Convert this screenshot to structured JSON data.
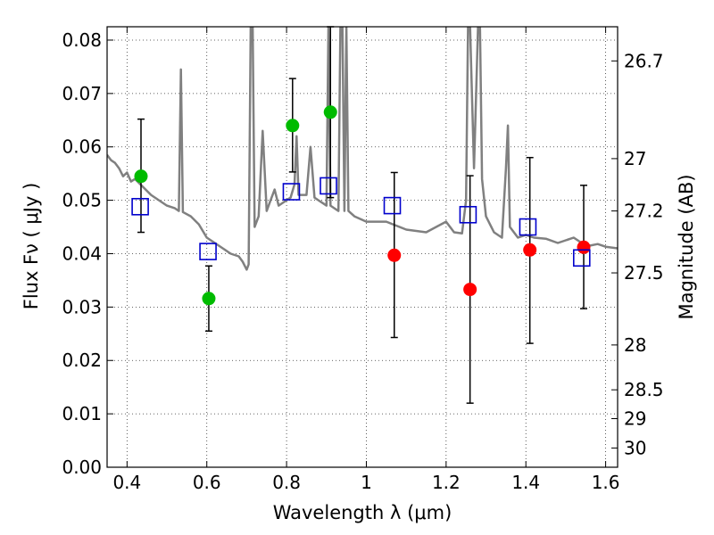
{
  "chart_data": {
    "type": "scatter",
    "xlabel": "Wavelength  λ (μm)",
    "ylabel": "Flux  Fν  ( μJy )",
    "y2label": "Magnitude (AB)",
    "xlim": [
      0.35,
      1.63
    ],
    "ylim": [
      0.0,
      0.0825
    ],
    "x_ticks": [
      0.4,
      0.6,
      0.8,
      1.0,
      1.2,
      1.4,
      1.6
    ],
    "x_tick_labels": [
      "0.4",
      "0.6",
      "0.8",
      "1",
      "1.2",
      "1.4",
      "1.6"
    ],
    "y_ticks": [
      0.0,
      0.01,
      0.02,
      0.03,
      0.04,
      0.05,
      0.06,
      0.07,
      0.08
    ],
    "y_tick_labels": [
      "0.00",
      "0.01",
      "0.02",
      "0.03",
      "0.04",
      "0.05",
      "0.06",
      "0.07",
      "0.08"
    ],
    "y2_ticks": [
      {
        "label": "26.7",
        "flux": 0.0761
      },
      {
        "label": "27",
        "flux": 0.0578
      },
      {
        "label": "27.2",
        "flux": 0.048
      },
      {
        "label": "27.5",
        "flux": 0.0364
      },
      {
        "label": "28",
        "flux": 0.0229
      },
      {
        "label": "28.5",
        "flux": 0.0145
      },
      {
        "label": "29",
        "flux": 0.0091
      },
      {
        "label": "30",
        "flux": 0.0036
      }
    ],
    "grid": true,
    "colors": {
      "green": "#00bb00",
      "red": "#ff0000",
      "square": "#0000cc",
      "spectrum": "#808080",
      "errorbar": "#000000"
    },
    "series": [
      {
        "marker": "circle-green",
        "points": [
          {
            "x": 0.435,
            "y": 0.0545,
            "yerr_low": 0.044,
            "yerr_high": 0.0652
          },
          {
            "x": 0.605,
            "y": 0.0316,
            "yerr_low": 0.0255,
            "yerr_high": 0.0377
          },
          {
            "x": 0.815,
            "y": 0.064,
            "yerr_low": 0.0553,
            "yerr_high": 0.0728
          },
          {
            "x": 0.91,
            "y": 0.0665,
            "yerr_low": 0.0505,
            "yerr_high": 0.0825
          }
        ]
      },
      {
        "marker": "circle-red",
        "points": [
          {
            "x": 1.07,
            "y": 0.0397,
            "yerr_low": 0.0243,
            "yerr_high": 0.0552
          },
          {
            "x": 1.26,
            "y": 0.0333,
            "yerr_low": 0.012,
            "yerr_high": 0.0546
          },
          {
            "x": 1.41,
            "y": 0.0407,
            "yerr_low": 0.0232,
            "yerr_high": 0.058
          },
          {
            "x": 1.545,
            "y": 0.0412,
            "yerr_low": 0.0297,
            "yerr_high": 0.0528
          }
        ]
      },
      {
        "marker": "square-blue",
        "points": [
          {
            "x": 0.433,
            "y": 0.0488
          },
          {
            "x": 0.603,
            "y": 0.0404
          },
          {
            "x": 0.812,
            "y": 0.0516
          },
          {
            "x": 0.905,
            "y": 0.0527
          },
          {
            "x": 1.065,
            "y": 0.049
          },
          {
            "x": 1.255,
            "y": 0.0473
          },
          {
            "x": 1.405,
            "y": 0.045
          },
          {
            "x": 1.54,
            "y": 0.0392
          }
        ]
      }
    ],
    "spectrum": [
      [
        0.35,
        0.0585
      ],
      [
        0.36,
        0.0575
      ],
      [
        0.37,
        0.057
      ],
      [
        0.38,
        0.056
      ],
      [
        0.39,
        0.0545
      ],
      [
        0.4,
        0.0552
      ],
      [
        0.41,
        0.0535
      ],
      [
        0.42,
        0.054
      ],
      [
        0.44,
        0.0525
      ],
      [
        0.46,
        0.051
      ],
      [
        0.48,
        0.05
      ],
      [
        0.5,
        0.049
      ],
      [
        0.52,
        0.0485
      ],
      [
        0.53,
        0.048
      ],
      [
        0.535,
        0.0745
      ],
      [
        0.54,
        0.0478
      ],
      [
        0.56,
        0.047
      ],
      [
        0.58,
        0.0455
      ],
      [
        0.6,
        0.043
      ],
      [
        0.62,
        0.042
      ],
      [
        0.64,
        0.041
      ],
      [
        0.66,
        0.04
      ],
      [
        0.68,
        0.0395
      ],
      [
        0.69,
        0.0385
      ],
      [
        0.7,
        0.037
      ],
      [
        0.705,
        0.038
      ],
      [
        0.71,
        0.0825
      ],
      [
        0.715,
        0.0825
      ],
      [
        0.72,
        0.045
      ],
      [
        0.73,
        0.047
      ],
      [
        0.74,
        0.063
      ],
      [
        0.75,
        0.048
      ],
      [
        0.76,
        0.05
      ],
      [
        0.77,
        0.052
      ],
      [
        0.78,
        0.049
      ],
      [
        0.79,
        0.0495
      ],
      [
        0.8,
        0.05
      ],
      [
        0.81,
        0.0505
      ],
      [
        0.82,
        0.053
      ],
      [
        0.825,
        0.062
      ],
      [
        0.83,
        0.051
      ],
      [
        0.85,
        0.051
      ],
      [
        0.86,
        0.06
      ],
      [
        0.87,
        0.0505
      ],
      [
        0.88,
        0.05
      ],
      [
        0.89,
        0.0495
      ],
      [
        0.9,
        0.049
      ],
      [
        0.905,
        0.0825
      ],
      [
        0.91,
        0.049
      ],
      [
        0.92,
        0.0485
      ],
      [
        0.93,
        0.048
      ],
      [
        0.935,
        0.0825
      ],
      [
        0.94,
        0.0825
      ],
      [
        0.945,
        0.048
      ],
      [
        0.95,
        0.0825
      ],
      [
        0.955,
        0.048
      ],
      [
        0.97,
        0.047
      ],
      [
        1.0,
        0.046
      ],
      [
        1.05,
        0.046
      ],
      [
        1.1,
        0.0445
      ],
      [
        1.15,
        0.044
      ],
      [
        1.2,
        0.046
      ],
      [
        1.22,
        0.044
      ],
      [
        1.24,
        0.0438
      ],
      [
        1.25,
        0.05
      ],
      [
        1.255,
        0.0825
      ],
      [
        1.26,
        0.0825
      ],
      [
        1.27,
        0.056
      ],
      [
        1.28,
        0.0825
      ],
      [
        1.285,
        0.0825
      ],
      [
        1.29,
        0.054
      ],
      [
        1.3,
        0.047
      ],
      [
        1.32,
        0.044
      ],
      [
        1.34,
        0.043
      ],
      [
        1.35,
        0.056
      ],
      [
        1.355,
        0.064
      ],
      [
        1.36,
        0.045
      ],
      [
        1.38,
        0.043
      ],
      [
        1.4,
        0.0435
      ],
      [
        1.42,
        0.043
      ],
      [
        1.45,
        0.0428
      ],
      [
        1.48,
        0.042
      ],
      [
        1.5,
        0.0425
      ],
      [
        1.52,
        0.043
      ],
      [
        1.54,
        0.042
      ],
      [
        1.56,
        0.0415
      ],
      [
        1.58,
        0.0418
      ],
      [
        1.6,
        0.0413
      ],
      [
        1.63,
        0.041
      ]
    ]
  }
}
